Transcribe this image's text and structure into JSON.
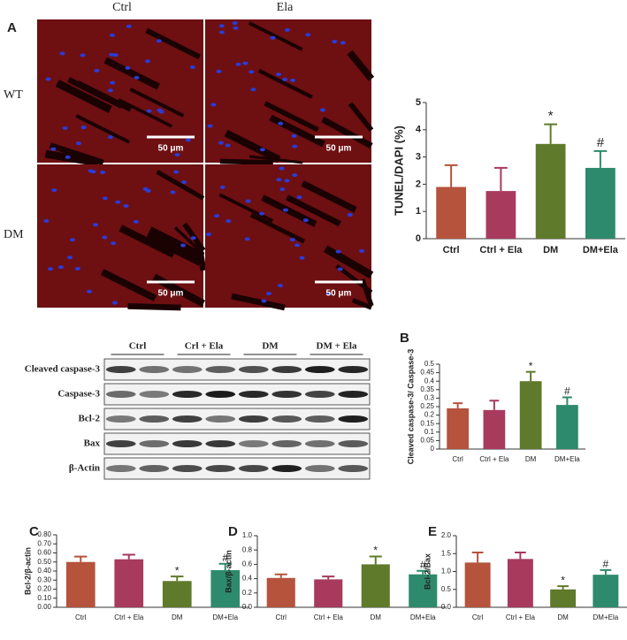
{
  "microscopy": {
    "panel": "A",
    "columns": [
      "Ctrl",
      "Ela"
    ],
    "rows": [
      "WT",
      "DM"
    ],
    "scale_bar": "50 μm"
  },
  "blot": {
    "groups": [
      "Ctrl",
      "Crl + Ela",
      "DM",
      "DM + Ela"
    ],
    "rows": [
      "Cleaved caspase-3",
      "Caspase-3",
      "Bcl-2",
      "Bax",
      "β-Actin"
    ]
  },
  "chart_data": [
    {
      "type": "bar",
      "ylabel": "TUNEL/DAPI (%)",
      "categories": [
        "Ctrl",
        "Ctrl + Ela",
        "DM",
        "DM+Ela"
      ],
      "values": [
        1.9,
        1.75,
        3.48,
        2.6
      ],
      "errors": [
        0.8,
        0.85,
        0.72,
        0.62
      ],
      "annotations": [
        null,
        null,
        "*",
        "#"
      ],
      "colors": [
        "#b5533c",
        "#a83a5e",
        "#5f7a2b",
        "#2e8a6c"
      ],
      "ylim": [
        0,
        5
      ],
      "yticks": [
        0,
        1,
        2,
        3,
        4,
        5
      ]
    },
    {
      "type": "bar",
      "panel": "B",
      "ylabel": "Cleaved caspase-3/ Caspase-3",
      "categories": [
        "Ctrl",
        "Ctrl + Ela",
        "DM",
        "DM+Ela"
      ],
      "values": [
        0.24,
        0.23,
        0.4,
        0.26
      ],
      "errors": [
        0.03,
        0.055,
        0.055,
        0.045
      ],
      "annotations": [
        null,
        null,
        "*",
        "#"
      ],
      "colors": [
        "#b5533c",
        "#a83a5e",
        "#5f7a2b",
        "#2e8a6c"
      ],
      "ylim": [
        0,
        0.5
      ],
      "yticks": [
        0,
        0.05,
        0.1,
        0.15,
        0.2,
        0.25,
        0.3,
        0.35,
        0.4,
        0.45,
        0.5
      ]
    },
    {
      "type": "bar",
      "panel": "C",
      "ylabel": "Bcl-2/β-actin",
      "categories": [
        "Ctrl",
        "Ctrl + Ela",
        "DM",
        "DM+Ela"
      ],
      "values": [
        0.5,
        0.53,
        0.29,
        0.41
      ],
      "errors": [
        0.06,
        0.05,
        0.05,
        0.07
      ],
      "annotations": [
        null,
        null,
        "*",
        "#"
      ],
      "colors": [
        "#b5533c",
        "#a83a5e",
        "#5f7a2b",
        "#2e8a6c"
      ],
      "ylim": [
        0,
        0.8
      ],
      "yticks": [
        {
          "value": 0,
          "label": "0.00"
        },
        {
          "value": 0.1,
          "label": "0.10"
        },
        {
          "value": 0.2,
          "label": "0.20"
        },
        {
          "value": 0.3,
          "label": "0.30"
        },
        {
          "value": 0.4,
          "label": "0.40"
        },
        {
          "value": 0.5,
          "label": "0.50"
        },
        {
          "value": 0.6,
          "label": "0.60"
        },
        {
          "value": 0.7,
          "label": "0.70"
        },
        {
          "value": 0.8,
          "label": "0.80"
        }
      ]
    },
    {
      "type": "bar",
      "panel": "D",
      "ylabel": "Bax/β-actin",
      "categories": [
        "Ctrl",
        "Ctrl + Ela",
        "DM",
        "DM+Ela"
      ],
      "values": [
        0.41,
        0.39,
        0.6,
        0.46
      ],
      "errors": [
        0.05,
        0.04,
        0.11,
        0.05
      ],
      "annotations": [
        null,
        null,
        "*",
        "#"
      ],
      "colors": [
        "#b5533c",
        "#a83a5e",
        "#5f7a2b",
        "#2e8a6c"
      ],
      "ylim": [
        0,
        1
      ],
      "yticks": [
        {
          "value": 0,
          "label": "0.0"
        },
        0.2,
        0.4,
        0.6,
        0.8,
        {
          "value": 1,
          "label": "1.0"
        }
      ]
    },
    {
      "type": "bar",
      "panel": "E",
      "ylabel": "Bcl-2/Bax",
      "categories": [
        "Ctrl",
        "Ctrl + Ela",
        "DM",
        "DM+Ela"
      ],
      "values": [
        1.25,
        1.35,
        0.5,
        0.91
      ],
      "errors": [
        0.28,
        0.18,
        0.09,
        0.13
      ],
      "annotations": [
        null,
        null,
        "*",
        "#"
      ],
      "colors": [
        "#b5533c",
        "#a83a5e",
        "#5f7a2b",
        "#2e8a6c"
      ],
      "ylim": [
        0,
        2
      ],
      "yticks": [
        {
          "value": 0,
          "label": "0.0"
        },
        0.5,
        {
          "value": 1,
          "label": "1.0"
        },
        1.5,
        {
          "value": 2,
          "label": "2.0"
        }
      ]
    }
  ]
}
